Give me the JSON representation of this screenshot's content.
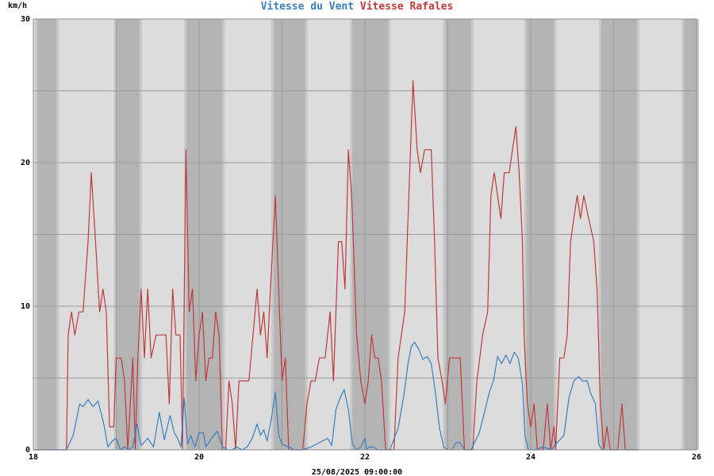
{
  "chart_data": {
    "type": "line",
    "title_parts": [
      {
        "text": "Vitesse du Vent",
        "color": "#3a7fc0"
      },
      {
        "text": "Vitesse Rafales",
        "color": "#c0393b"
      }
    ],
    "ylabel": "km/h",
    "xlabel": "25/08/2025 09:00:00",
    "xlim": [
      18,
      26
    ],
    "ylim": [
      0,
      30
    ],
    "x_ticks": [
      18,
      20,
      22,
      24,
      26
    ],
    "y_ticks": [
      0,
      10,
      20,
      30
    ],
    "grid": true,
    "night_bands": [
      [
        18.05,
        18.28
      ],
      [
        19.0,
        19.28
      ],
      [
        19.85,
        20.28
      ],
      [
        20.9,
        21.28
      ],
      [
        21.85,
        22.28
      ],
      [
        22.97,
        23.28
      ],
      [
        23.95,
        24.28
      ],
      [
        24.85,
        25.28
      ],
      [
        25.85,
        26.0
      ]
    ],
    "series": [
      {
        "name": "Vitesse du Vent",
        "color": "#3a7fc0",
        "points": [
          [
            18.0,
            0
          ],
          [
            18.2,
            0
          ],
          [
            18.4,
            0
          ],
          [
            18.48,
            1
          ],
          [
            18.56,
            3.2
          ],
          [
            18.6,
            3.0
          ],
          [
            18.66,
            3.5
          ],
          [
            18.72,
            3.0
          ],
          [
            18.78,
            3.4
          ],
          [
            18.85,
            1.8
          ],
          [
            18.9,
            0.2
          ],
          [
            18.95,
            0.6
          ],
          [
            19.0,
            0.8
          ],
          [
            19.05,
            0
          ],
          [
            19.1,
            0.2
          ],
          [
            19.15,
            0
          ],
          [
            19.2,
            0.2
          ],
          [
            19.25,
            1.8
          ],
          [
            19.3,
            0.3
          ],
          [
            19.38,
            0.8
          ],
          [
            19.45,
            0.2
          ],
          [
            19.52,
            2.6
          ],
          [
            19.58,
            0.7
          ],
          [
            19.65,
            2.4
          ],
          [
            19.7,
            1.2
          ],
          [
            19.74,
            0.8
          ],
          [
            19.78,
            0.2
          ],
          [
            19.82,
            3.6
          ],
          [
            19.86,
            0.4
          ],
          [
            19.9,
            1.0
          ],
          [
            19.95,
            0.2
          ],
          [
            20.0,
            1.2
          ],
          [
            20.05,
            1.2
          ],
          [
            20.08,
            0.2
          ],
          [
            20.15,
            0.8
          ],
          [
            20.22,
            1.3
          ],
          [
            20.28,
            0.2
          ],
          [
            20.35,
            0
          ],
          [
            20.4,
            0
          ],
          [
            20.45,
            0.2
          ],
          [
            20.52,
            0
          ],
          [
            20.58,
            0.2
          ],
          [
            20.64,
            0.8
          ],
          [
            20.7,
            1.8
          ],
          [
            20.74,
            1.0
          ],
          [
            20.78,
            1.4
          ],
          [
            20.82,
            0.6
          ],
          [
            20.88,
            2.5
          ],
          [
            20.92,
            4.0
          ],
          [
            20.96,
            1.0
          ],
          [
            21.0,
            0.4
          ],
          [
            21.08,
            0.2
          ],
          [
            21.15,
            0
          ],
          [
            21.25,
            0
          ],
          [
            21.35,
            0.2
          ],
          [
            21.45,
            0.5
          ],
          [
            21.55,
            0.8
          ],
          [
            21.6,
            0.3
          ],
          [
            21.65,
            2.8
          ],
          [
            21.7,
            3.6
          ],
          [
            21.75,
            4.2
          ],
          [
            21.8,
            2.8
          ],
          [
            21.85,
            0.4
          ],
          [
            21.9,
            0
          ],
          [
            21.95,
            0.2
          ],
          [
            22.0,
            0.8
          ],
          [
            22.02,
            0
          ],
          [
            22.05,
            0.2
          ],
          [
            22.1,
            0.2
          ],
          [
            22.15,
            0
          ],
          [
            22.3,
            0
          ],
          [
            22.4,
            1.5
          ],
          [
            22.47,
            3.8
          ],
          [
            22.52,
            6.0
          ],
          [
            22.56,
            7.2
          ],
          [
            22.6,
            7.5
          ],
          [
            22.65,
            7.0
          ],
          [
            22.7,
            6.3
          ],
          [
            22.75,
            6.5
          ],
          [
            22.8,
            6.0
          ],
          [
            22.85,
            4.0
          ],
          [
            22.9,
            1.5
          ],
          [
            22.95,
            0.2
          ],
          [
            23.0,
            0
          ],
          [
            23.05,
            0
          ],
          [
            23.1,
            0.5
          ],
          [
            23.15,
            0.5
          ],
          [
            23.2,
            0
          ],
          [
            23.28,
            0
          ],
          [
            23.38,
            1.2
          ],
          [
            23.45,
            2.8
          ],
          [
            23.5,
            4.0
          ],
          [
            23.55,
            4.8
          ],
          [
            23.6,
            6.5
          ],
          [
            23.65,
            6.0
          ],
          [
            23.7,
            6.6
          ],
          [
            23.75,
            6.0
          ],
          [
            23.8,
            6.8
          ],
          [
            23.85,
            6.4
          ],
          [
            23.9,
            4.6
          ],
          [
            23.93,
            1.0
          ],
          [
            23.97,
            0
          ],
          [
            24.05,
            0
          ],
          [
            24.15,
            0.2
          ],
          [
            24.25,
            0
          ],
          [
            24.32,
            0.5
          ],
          [
            24.4,
            1.0
          ],
          [
            24.46,
            3.6
          ],
          [
            24.52,
            4.8
          ],
          [
            24.58,
            5.1
          ],
          [
            24.62,
            4.8
          ],
          [
            24.68,
            4.8
          ],
          [
            24.72,
            4.0
          ],
          [
            24.78,
            3.2
          ],
          [
            24.82,
            0.4
          ],
          [
            24.86,
            0
          ],
          [
            25.0,
            0
          ],
          [
            25.2,
            0
          ],
          [
            25.3,
            0
          ]
        ]
      },
      {
        "name": "Vitesse Rafales",
        "color": "#c0393b",
        "points": [
          [
            18.0,
            0
          ],
          [
            18.3,
            0
          ],
          [
            18.4,
            0
          ],
          [
            18.42,
            8.0
          ],
          [
            18.46,
            9.6
          ],
          [
            18.5,
            8.0
          ],
          [
            18.55,
            9.6
          ],
          [
            18.6,
            9.6
          ],
          [
            18.66,
            14.5
          ],
          [
            18.7,
            19.3
          ],
          [
            18.75,
            14.5
          ],
          [
            18.8,
            9.6
          ],
          [
            18.84,
            11.2
          ],
          [
            18.88,
            9.6
          ],
          [
            18.92,
            1.6
          ],
          [
            18.97,
            1.6
          ],
          [
            19.0,
            6.4
          ],
          [
            19.06,
            6.4
          ],
          [
            19.1,
            4.8
          ],
          [
            19.14,
            0
          ],
          [
            19.2,
            6.4
          ],
          [
            19.23,
            0
          ],
          [
            19.26,
            6.4
          ],
          [
            19.3,
            11.2
          ],
          [
            19.34,
            6.4
          ],
          [
            19.38,
            11.2
          ],
          [
            19.42,
            6.4
          ],
          [
            19.48,
            8.0
          ],
          [
            19.55,
            8.0
          ],
          [
            19.6,
            8.0
          ],
          [
            19.64,
            3.2
          ],
          [
            19.68,
            11.2
          ],
          [
            19.72,
            8.0
          ],
          [
            19.77,
            8.0
          ],
          [
            19.8,
            0
          ],
          [
            19.84,
            20.9
          ],
          [
            19.88,
            9.6
          ],
          [
            19.92,
            11.2
          ],
          [
            19.96,
            4.8
          ],
          [
            20.0,
            8.0
          ],
          [
            20.04,
            9.6
          ],
          [
            20.08,
            4.8
          ],
          [
            20.12,
            6.4
          ],
          [
            20.16,
            6.4
          ],
          [
            20.2,
            9.6
          ],
          [
            20.24,
            8.0
          ],
          [
            20.28,
            0
          ],
          [
            20.32,
            0
          ],
          [
            20.36,
            4.8
          ],
          [
            20.4,
            3.2
          ],
          [
            20.44,
            0
          ],
          [
            20.48,
            4.8
          ],
          [
            20.55,
            4.8
          ],
          [
            20.6,
            4.8
          ],
          [
            20.65,
            8.0
          ],
          [
            20.7,
            11.2
          ],
          [
            20.74,
            8.0
          ],
          [
            20.78,
            9.6
          ],
          [
            20.82,
            6.4
          ],
          [
            20.86,
            11.2
          ],
          [
            20.92,
            17.7
          ],
          [
            20.96,
            11.2
          ],
          [
            21.0,
            4.8
          ],
          [
            21.04,
            6.4
          ],
          [
            21.08,
            0
          ],
          [
            21.2,
            0
          ],
          [
            21.25,
            0
          ],
          [
            21.3,
            3.2
          ],
          [
            21.35,
            4.8
          ],
          [
            21.4,
            4.8
          ],
          [
            21.45,
            6.4
          ],
          [
            21.52,
            6.4
          ],
          [
            21.58,
            9.6
          ],
          [
            21.62,
            4.8
          ],
          [
            21.68,
            14.5
          ],
          [
            21.72,
            14.5
          ],
          [
            21.76,
            11.2
          ],
          [
            21.8,
            20.9
          ],
          [
            21.84,
            17.7
          ],
          [
            21.9,
            8.0
          ],
          [
            21.95,
            4.8
          ],
          [
            22.0,
            3.2
          ],
          [
            22.04,
            4.8
          ],
          [
            22.08,
            8.0
          ],
          [
            22.12,
            6.4
          ],
          [
            22.16,
            6.4
          ],
          [
            22.2,
            4.8
          ],
          [
            22.25,
            0
          ],
          [
            22.35,
            0
          ],
          [
            22.4,
            6.4
          ],
          [
            22.48,
            9.6
          ],
          [
            22.52,
            16.1
          ],
          [
            22.58,
            25.7
          ],
          [
            22.63,
            20.9
          ],
          [
            22.67,
            19.3
          ],
          [
            22.72,
            20.9
          ],
          [
            22.8,
            20.9
          ],
          [
            22.84,
            14.5
          ],
          [
            22.88,
            6.4
          ],
          [
            22.93,
            4.8
          ],
          [
            22.97,
            3.2
          ],
          [
            23.02,
            6.4
          ],
          [
            23.1,
            6.4
          ],
          [
            23.15,
            6.4
          ],
          [
            23.2,
            0
          ],
          [
            23.3,
            0
          ],
          [
            23.35,
            4.8
          ],
          [
            23.42,
            8.0
          ],
          [
            23.48,
            9.6
          ],
          [
            23.52,
            17.7
          ],
          [
            23.56,
            19.3
          ],
          [
            23.6,
            17.7
          ],
          [
            23.64,
            16.1
          ],
          [
            23.68,
            19.3
          ],
          [
            23.74,
            19.3
          ],
          [
            23.78,
            20.9
          ],
          [
            23.82,
            22.5
          ],
          [
            23.86,
            19.3
          ],
          [
            23.9,
            14.5
          ],
          [
            23.92,
            8.0
          ],
          [
            23.96,
            3.2
          ],
          [
            24.0,
            1.6
          ],
          [
            24.04,
            3.2
          ],
          [
            24.08,
            0
          ],
          [
            24.15,
            0
          ],
          [
            24.2,
            3.2
          ],
          [
            24.24,
            0
          ],
          [
            24.28,
            1.6
          ],
          [
            24.3,
            0
          ],
          [
            24.35,
            6.4
          ],
          [
            24.4,
            6.4
          ],
          [
            24.44,
            8.0
          ],
          [
            24.48,
            14.5
          ],
          [
            24.52,
            16.1
          ],
          [
            24.56,
            17.7
          ],
          [
            24.6,
            16.1
          ],
          [
            24.64,
            17.7
          ],
          [
            24.7,
            16.1
          ],
          [
            24.76,
            14.5
          ],
          [
            24.8,
            11.2
          ],
          [
            24.84,
            3.2
          ],
          [
            24.88,
            0
          ],
          [
            24.92,
            1.6
          ],
          [
            24.96,
            0
          ],
          [
            25.05,
            0
          ],
          [
            25.1,
            3.2
          ],
          [
            25.14,
            0
          ],
          [
            25.2,
            0
          ],
          [
            25.3,
            0
          ]
        ]
      }
    ]
  }
}
